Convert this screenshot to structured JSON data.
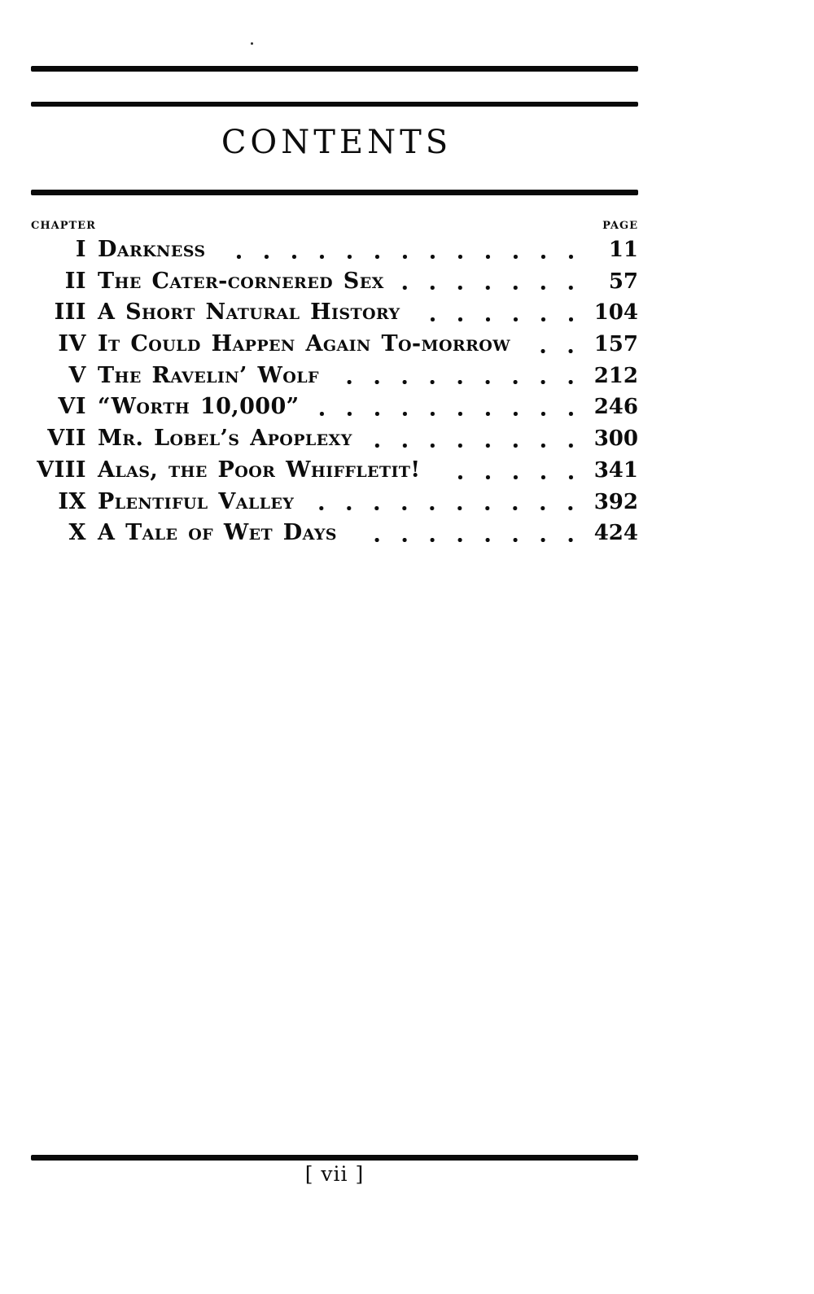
{
  "page": {
    "title": "CONTENTS",
    "footer_page_label": "[ vii ]"
  },
  "toc": {
    "chapter_header": "CHAPTER",
    "page_header": "PAGE",
    "entries": [
      {
        "num": "I",
        "title": "Darkness",
        "page": "11"
      },
      {
        "num": "II",
        "title": "The Cater-cornered Sex",
        "page": "57"
      },
      {
        "num": "III",
        "title": "A Short Natural History",
        "page": "104"
      },
      {
        "num": "IV",
        "title": "It Could Happen Again To-morrow",
        "page": "157"
      },
      {
        "num": "V",
        "title": "The Ravelin’ Wolf",
        "page": "212"
      },
      {
        "num": "VI",
        "title": "“Worth 10,000”",
        "page": "246"
      },
      {
        "num": "VII",
        "title": "Mr. Lobel’s Apoplexy",
        "page": "300"
      },
      {
        "num": "VIII",
        "title": "Alas, the Poor Whiffletit!",
        "page": "341"
      },
      {
        "num": "IX",
        "title": "Plentiful Valley",
        "page": "392"
      },
      {
        "num": "X",
        "title": "A Tale of Wet Days",
        "page": "424"
      }
    ]
  },
  "colors": {
    "ink": "#0c0c0c",
    "paper": "#ffffff"
  }
}
